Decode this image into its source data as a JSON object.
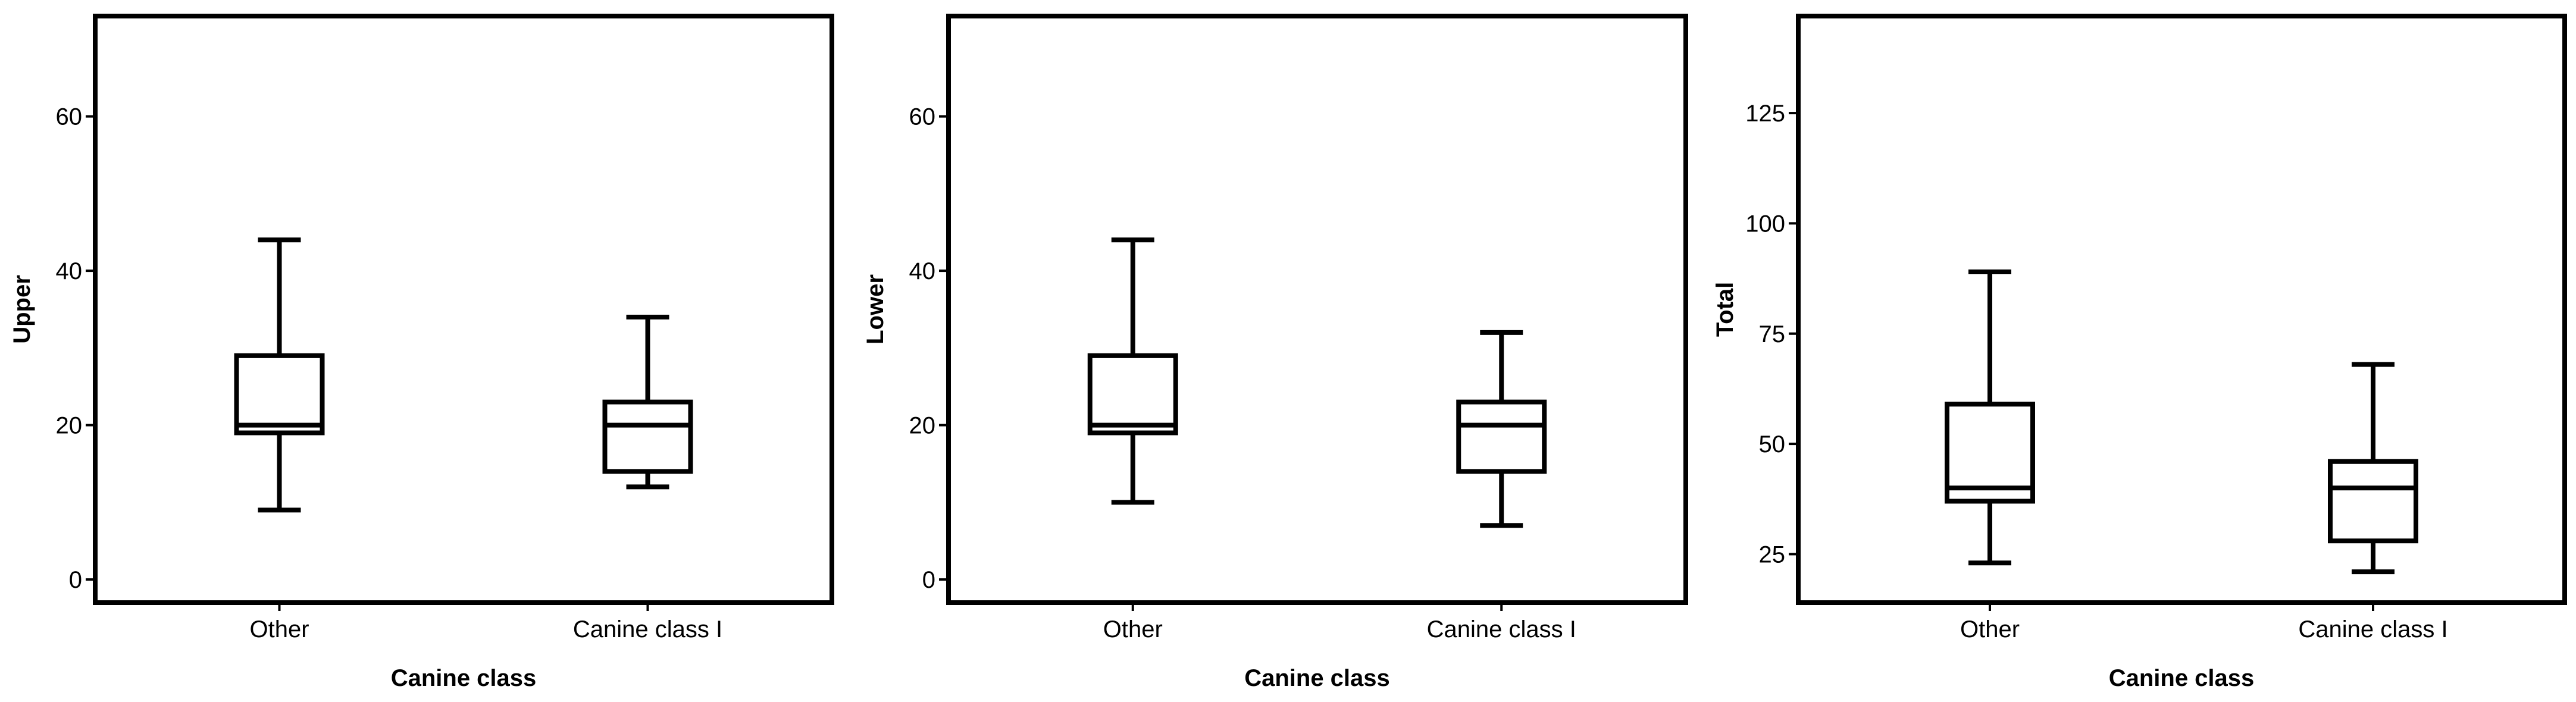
{
  "chart_data": [
    {
      "type": "box",
      "xlabel": "Canine class",
      "ylabel": "Upper",
      "categories": [
        "Other",
        "Canine class I"
      ],
      "boxes": [
        {
          "category": "Other",
          "min": 9,
          "q1": 19,
          "median": 20,
          "q3": 29,
          "max": 44
        },
        {
          "category": "Canine class I",
          "min": 12,
          "q1": 14,
          "median": 20,
          "q3": 23,
          "max": 34
        }
      ],
      "yticks": [
        0,
        20,
        40,
        60
      ],
      "ylim": [
        -3,
        73
      ],
      "grid": false
    },
    {
      "type": "box",
      "xlabel": "Canine class",
      "ylabel": "Lower",
      "categories": [
        "Other",
        "Canine class I"
      ],
      "boxes": [
        {
          "category": "Other",
          "min": 10,
          "q1": 19,
          "median": 20,
          "q3": 29,
          "max": 44
        },
        {
          "category": "Canine class I",
          "min": 7,
          "q1": 14,
          "median": 20,
          "q3": 23,
          "max": 32
        }
      ],
      "yticks": [
        0,
        20,
        40,
        60
      ],
      "ylim": [
        -3,
        73
      ],
      "grid": false
    },
    {
      "type": "box",
      "xlabel": "Canine class",
      "ylabel": "Total",
      "categories": [
        "Other",
        "Canine class I"
      ],
      "boxes": [
        {
          "category": "Other",
          "min": 23,
          "q1": 37,
          "median": 40,
          "q3": 59,
          "max": 89
        },
        {
          "category": "Canine class I",
          "min": 21,
          "q1": 28,
          "median": 40,
          "q3": 46,
          "max": 68
        }
      ],
      "yticks": [
        25,
        50,
        75,
        100,
        125
      ],
      "ylim": [
        14,
        147
      ],
      "grid": false
    }
  ]
}
